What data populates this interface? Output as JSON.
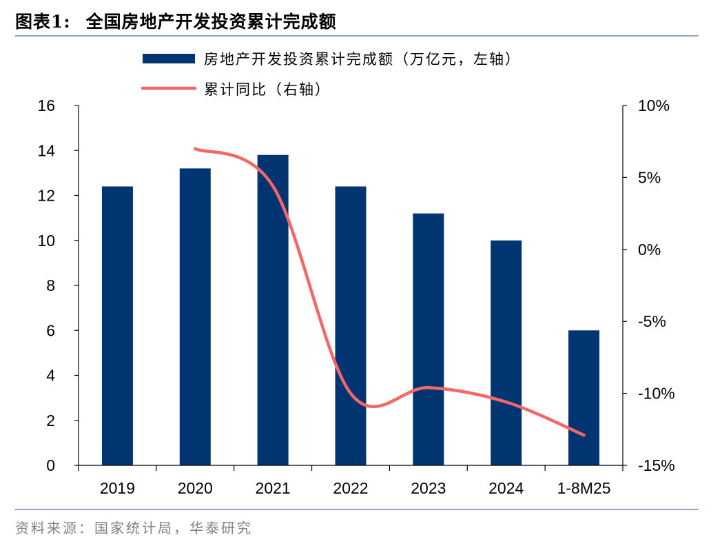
{
  "header": {
    "figure_label": "图表1:",
    "title": "全国房地产开发投资累计完成额"
  },
  "footer": {
    "source": "资料来源：国家统计局，华泰研究"
  },
  "colors": {
    "bar": "#003572",
    "line": "#f26868",
    "rule": "#8fa7c2"
  },
  "chart_data": {
    "type": "bar",
    "categories": [
      "2019",
      "2020",
      "2021",
      "2022",
      "2023",
      "2024",
      "1-8M25"
    ],
    "series": [
      {
        "name": "房地产开发投资累计完成额（万亿元，左轴）",
        "type": "bar",
        "axis": "left",
        "values": [
          12.4,
          13.2,
          13.8,
          12.4,
          11.2,
          10.0,
          6.0
        ]
      },
      {
        "name": "累计同比（右轴）",
        "type": "line",
        "axis": "right",
        "values": [
          null,
          7.0,
          4.4,
          -10.0,
          -9.6,
          -10.6,
          -12.9
        ]
      }
    ],
    "y_left": {
      "min": 0,
      "max": 16,
      "ticks": [
        "0",
        "2",
        "4",
        "6",
        "8",
        "10",
        "12",
        "14",
        "16"
      ]
    },
    "y_right": {
      "min": -15,
      "max": 10,
      "ticks": [
        "-15%",
        "-10%",
        "-5%",
        "0%",
        "5%",
        "10%"
      ]
    },
    "legend_position": "top-center",
    "grid": false
  }
}
